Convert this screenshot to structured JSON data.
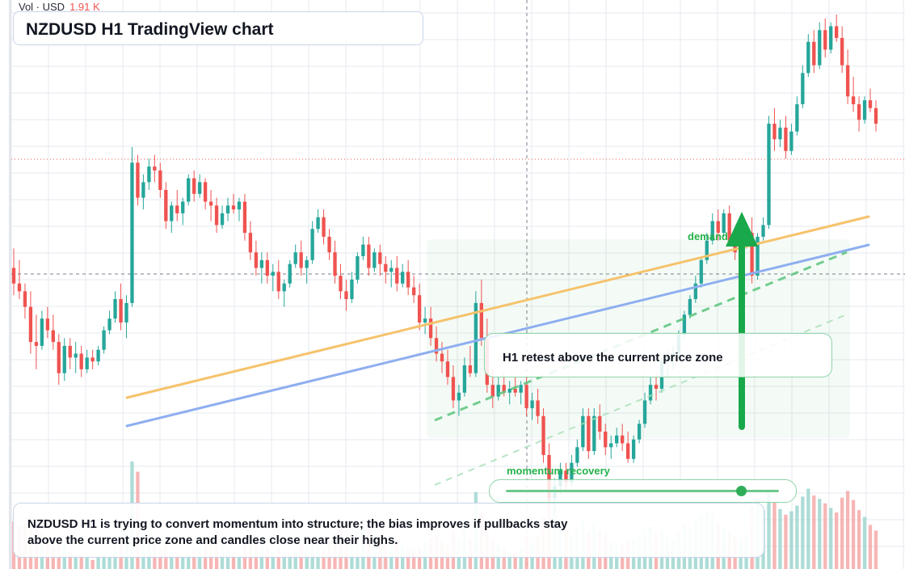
{
  "header": {
    "vol_label": "Vol · USD",
    "vol_value": "1.91 K",
    "title": "NZDUSD H1 TradingView chart"
  },
  "annotations": {
    "callout": "H1 retest above the current price zone",
    "demand_label": "demand",
    "momentum_label": "momentum recovery",
    "momentum_level": 0.86,
    "summary": "NZDUSD H1 is trying to convert momentum into structure; the bias improves if pullbacks stay above the current price zone and candles close near their highs."
  },
  "colors": {
    "up": "#26a69a",
    "down": "#ef5350",
    "up_volume": "#9fd6cf",
    "down_volume": "#f5a9a8",
    "orange_trend": "#f6c26b",
    "blue_trend": "#8eaef0",
    "green_accent": "#19a84a",
    "grid": "#e6e9ef"
  },
  "chart_data": {
    "type": "candlestick",
    "symbol": "NZDUSD",
    "timeframe": "H1",
    "y_range": [
      0,
      100
    ],
    "candles_ohlc_volume": [
      [
        68,
        73,
        61,
        64,
        4.2
      ],
      [
        64,
        70,
        60,
        62,
        3.8
      ],
      [
        62,
        64,
        55,
        58,
        4.0
      ],
      [
        58,
        62,
        46,
        49,
        4.6
      ],
      [
        49,
        56,
        42,
        48,
        3.5
      ],
      [
        48,
        57,
        47,
        55,
        3.1
      ],
      [
        55,
        58,
        50,
        52,
        2.4
      ],
      [
        52,
        56,
        47,
        49,
        2.0
      ],
      [
        49,
        51,
        38,
        41,
        2.8
      ],
      [
        41,
        50,
        39,
        48,
        2.2
      ],
      [
        48,
        50,
        42,
        45,
        1.6
      ],
      [
        45,
        49,
        41,
        46,
        1.2
      ],
      [
        46,
        48,
        40,
        42,
        1.4
      ],
      [
        42,
        47,
        41,
        45,
        1.0
      ],
      [
        45,
        47,
        42,
        44,
        0.8
      ],
      [
        44,
        48,
        43,
        47,
        1.1
      ],
      [
        47,
        53,
        46,
        52,
        1.3
      ],
      [
        52,
        57,
        51,
        55,
        1.0
      ],
      [
        55,
        62,
        54,
        60,
        1.8
      ],
      [
        60,
        64,
        52,
        54,
        2.6
      ],
      [
        54,
        61,
        50,
        59,
        3.2
      ],
      [
        59,
        99,
        58,
        95,
        9.5
      ],
      [
        95,
        97,
        84,
        86,
        8.6
      ],
      [
        86,
        92,
        83,
        90,
        4.1
      ],
      [
        90,
        96,
        88,
        94,
        3.3
      ],
      [
        94,
        97,
        90,
        93,
        2.4
      ],
      [
        93,
        95,
        86,
        88,
        1.9
      ],
      [
        88,
        90,
        78,
        80,
        2.2
      ],
      [
        80,
        85,
        77,
        84,
        1.5
      ],
      [
        84,
        88,
        80,
        82,
        1.3
      ],
      [
        82,
        86,
        79,
        85,
        1.1
      ],
      [
        85,
        92,
        84,
        91,
        1.4
      ],
      [
        91,
        93,
        85,
        87,
        1.6
      ],
      [
        87,
        92,
        86,
        90,
        1.8
      ],
      [
        90,
        91,
        83,
        85,
        2.0
      ],
      [
        85,
        88,
        80,
        84,
        2.9
      ],
      [
        84,
        86,
        77,
        79,
        3.4
      ],
      [
        79,
        84,
        78,
        82,
        2.3
      ],
      [
        82,
        86,
        80,
        84,
        1.7
      ],
      [
        84,
        87,
        82,
        83,
        1.5
      ],
      [
        83,
        86,
        80,
        85,
        1.2
      ],
      [
        85,
        87,
        75,
        77,
        2.1
      ],
      [
        77,
        80,
        70,
        72,
        2.7
      ],
      [
        72,
        75,
        66,
        68,
        3.0
      ],
      [
        68,
        72,
        64,
        70,
        2.5
      ],
      [
        70,
        72,
        64,
        66,
        2.0
      ],
      [
        66,
        69,
        62,
        67,
        1.6
      ],
      [
        67,
        70,
        60,
        62,
        1.8
      ],
      [
        62,
        65,
        58,
        64,
        1.4
      ],
      [
        64,
        70,
        63,
        69,
        1.3
      ],
      [
        69,
        74,
        68,
        72,
        1.7
      ],
      [
        72,
        75,
        66,
        68,
        2.2
      ],
      [
        68,
        71,
        64,
        70,
        1.9
      ],
      [
        70,
        80,
        69,
        78,
        2.4
      ],
      [
        78,
        83,
        77,
        81,
        2.0
      ],
      [
        81,
        83,
        74,
        76,
        1.7
      ],
      [
        76,
        78,
        70,
        72,
        2.3
      ],
      [
        72,
        75,
        64,
        66,
        2.8
      ],
      [
        66,
        69,
        60,
        62,
        3.6
      ],
      [
        62,
        65,
        57,
        60,
        2.6
      ],
      [
        60,
        67,
        59,
        65,
        2.4
      ],
      [
        65,
        72,
        64,
        71,
        3.3
      ],
      [
        71,
        76,
        70,
        74,
        4.4
      ],
      [
        74,
        76,
        66,
        68,
        3.9
      ],
      [
        68,
        73,
        67,
        72,
        3.1
      ],
      [
        72,
        74,
        66,
        69,
        2.6
      ],
      [
        69,
        71,
        64,
        67,
        2.2
      ],
      [
        67,
        70,
        63,
        68,
        1.9
      ],
      [
        68,
        71,
        62,
        64,
        2.5
      ],
      [
        64,
        69,
        63,
        67,
        2.1
      ],
      [
        67,
        70,
        61,
        63,
        1.8
      ],
      [
        63,
        66,
        59,
        61,
        1.6
      ],
      [
        61,
        64,
        52,
        54,
        1.9
      ],
      [
        54,
        58,
        51,
        55,
        2.3
      ],
      [
        55,
        58,
        48,
        50,
        2.7
      ],
      [
        50,
        53,
        44,
        46,
        3.0
      ],
      [
        46,
        49,
        41,
        44,
        2.4
      ],
      [
        44,
        47,
        38,
        40,
        2.1
      ],
      [
        40,
        43,
        32,
        34,
        3.5
      ],
      [
        34,
        38,
        30,
        36,
        2.6
      ],
      [
        36,
        45,
        35,
        43,
        3.8
      ],
      [
        43,
        48,
        40,
        41,
        2.7
      ],
      [
        41,
        62,
        40,
        59,
        6.8
      ],
      [
        59,
        65,
        48,
        50,
        5.0
      ],
      [
        50,
        55,
        36,
        38,
        3.6
      ],
      [
        38,
        42,
        32,
        35,
        2.6
      ],
      [
        35,
        40,
        34,
        38,
        2.1
      ],
      [
        38,
        41,
        35,
        36,
        1.8
      ],
      [
        36,
        39,
        33,
        37,
        1.5
      ],
      [
        37,
        40,
        35,
        36,
        1.4
      ],
      [
        36,
        39,
        33,
        38,
        1.9
      ],
      [
        38,
        40,
        30,
        32,
        2.9
      ],
      [
        32,
        36,
        29,
        34,
        2.3
      ],
      [
        34,
        37,
        28,
        30,
        3.0
      ],
      [
        30,
        32,
        18,
        20,
        4.6
      ],
      [
        20,
        23,
        6,
        9,
        6.5
      ],
      [
        9,
        14,
        5,
        12,
        5.5
      ],
      [
        12,
        18,
        10,
        16,
        4.2
      ],
      [
        16,
        18,
        11,
        13,
        3.5
      ],
      [
        13,
        20,
        12,
        18,
        3.0
      ],
      [
        18,
        24,
        17,
        22,
        3.6
      ],
      [
        22,
        32,
        21,
        30,
        4.2
      ],
      [
        30,
        32,
        19,
        21,
        3.3
      ],
      [
        21,
        32,
        20,
        30,
        4.1
      ],
      [
        30,
        33,
        24,
        26,
        3.4
      ],
      [
        26,
        28,
        20,
        22,
        3.0
      ],
      [
        22,
        25,
        19,
        23,
        2.4
      ],
      [
        23,
        27,
        22,
        25,
        2.0
      ],
      [
        25,
        28,
        21,
        23,
        2.2
      ],
      [
        23,
        26,
        18,
        19,
        2.5
      ],
      [
        19,
        25,
        18,
        24,
        2.7
      ],
      [
        24,
        29,
        23,
        28,
        3.0
      ],
      [
        28,
        36,
        27,
        34,
        3.5
      ],
      [
        34,
        40,
        33,
        38,
        3.8
      ],
      [
        38,
        41,
        34,
        37,
        3.2
      ],
      [
        37,
        45,
        36,
        44,
        3.5
      ],
      [
        44,
        47,
        40,
        45,
        2.9
      ],
      [
        45,
        48,
        42,
        46,
        2.6
      ],
      [
        46,
        52,
        45,
        51,
        3.3
      ],
      [
        51,
        57,
        50,
        56,
        4.0
      ],
      [
        56,
        61,
        55,
        60,
        3.6
      ],
      [
        60,
        66,
        59,
        64,
        4.4
      ],
      [
        64,
        71,
        63,
        70,
        4.8
      ],
      [
        70,
        77,
        69,
        75,
        5.0
      ],
      [
        75,
        82,
        74,
        80,
        4.9
      ],
      [
        80,
        83,
        75,
        77,
        4.1
      ],
      [
        77,
        83,
        76,
        82,
        3.6
      ],
      [
        82,
        84,
        74,
        75,
        3.3
      ],
      [
        75,
        77,
        70,
        72,
        3.0
      ],
      [
        72,
        75,
        69,
        74,
        2.7
      ],
      [
        74,
        78,
        73,
        77,
        2.9
      ],
      [
        77,
        81,
        64,
        66,
        5.5
      ],
      [
        66,
        77,
        65,
        76,
        6.1
      ],
      [
        76,
        81,
        75,
        79,
        5.2
      ],
      [
        79,
        107,
        78,
        105,
        6.8
      ],
      [
        105,
        109,
        98,
        101,
        5.9
      ],
      [
        101,
        106,
        99,
        104,
        5.3
      ],
      [
        104,
        107,
        96,
        98,
        4.8
      ],
      [
        98,
        105,
        97,
        103,
        5.1
      ],
      [
        103,
        112,
        102,
        110,
        5.6
      ],
      [
        110,
        120,
        109,
        118,
        6.4
      ],
      [
        118,
        128,
        117,
        126,
        7.1
      ],
      [
        126,
        129,
        118,
        120,
        6.5
      ],
      [
        120,
        131,
        119,
        129,
        6.2
      ],
      [
        129,
        132,
        122,
        124,
        5.8
      ],
      [
        124,
        131,
        123,
        130,
        5.4
      ],
      [
        130,
        133,
        126,
        127,
        5.0
      ],
      [
        127,
        130,
        118,
        120,
        6.3
      ],
      [
        120,
        124,
        110,
        112,
        6.9
      ],
      [
        112,
        117,
        108,
        110,
        6.1
      ],
      [
        110,
        112,
        103,
        106,
        5.2
      ],
      [
        106,
        112,
        105,
        111,
        4.6
      ],
      [
        111,
        114,
        108,
        109,
        3.9
      ],
      [
        109,
        111,
        103,
        105,
        3.4
      ]
    ],
    "overlays": [
      {
        "name": "orange trendline",
        "style": "solid"
      },
      {
        "name": "blue trendline",
        "style": "solid"
      },
      {
        "name": "green dashed channel",
        "style": "dashed"
      },
      {
        "name": "demand zone",
        "style": "shaded"
      },
      {
        "name": "green up arrow",
        "style": "arrow"
      }
    ],
    "grid": true
  }
}
